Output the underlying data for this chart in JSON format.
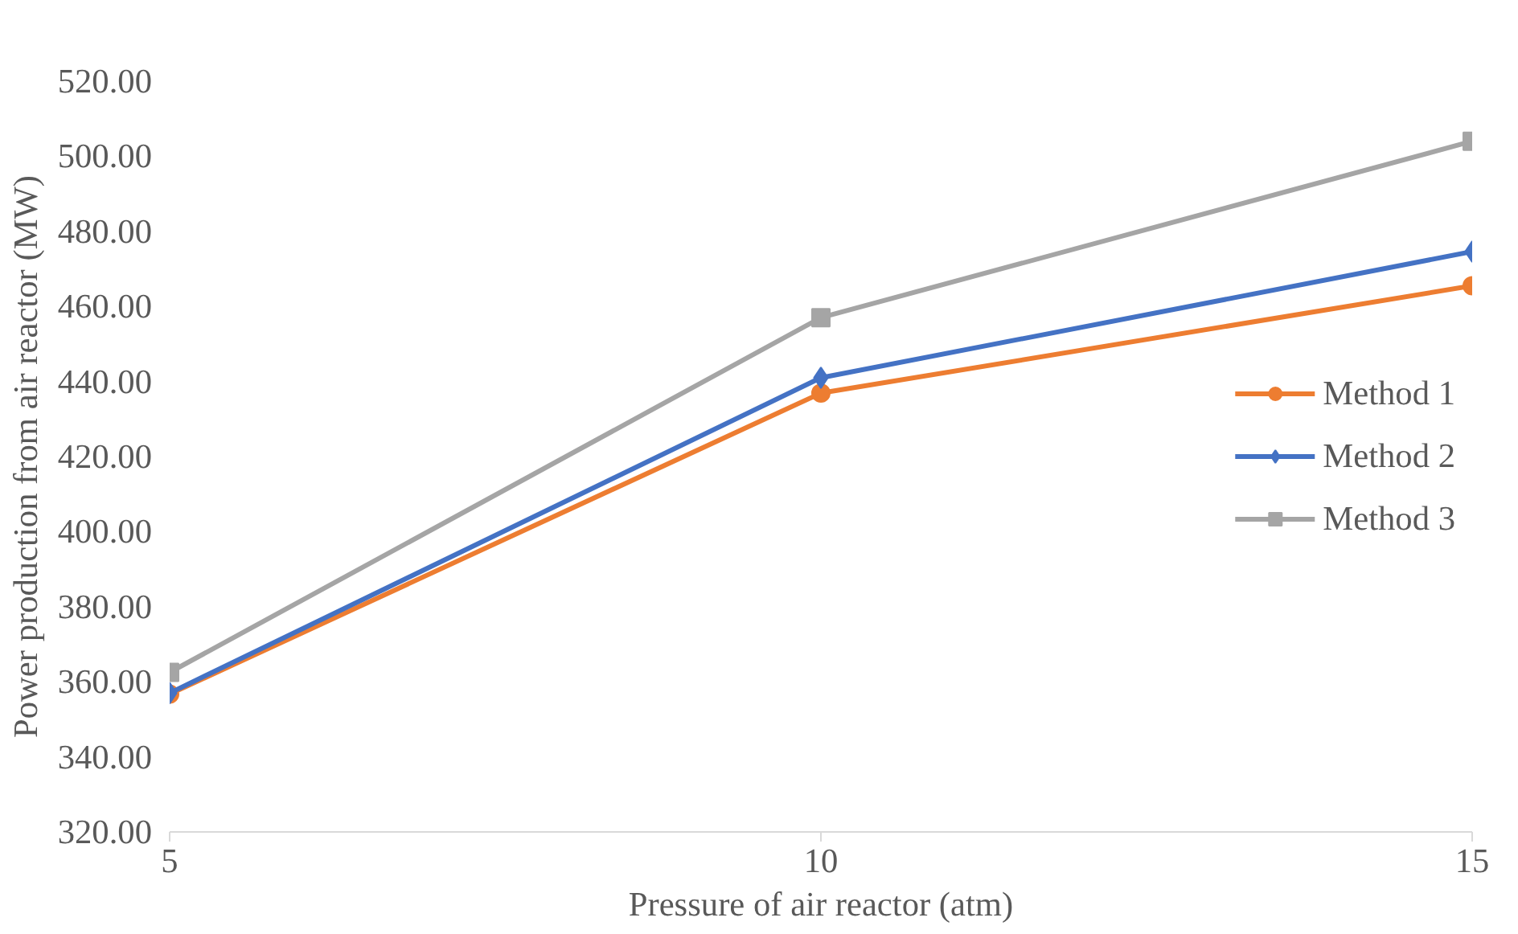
{
  "chart_data": {
    "type": "line",
    "xlabel": "Pressure of air reactor (atm)",
    "ylabel": "Power production from air reactor (MW)",
    "x": [
      5,
      10,
      15
    ],
    "xlim": [
      5,
      15
    ],
    "xticks": [
      5,
      10,
      15
    ],
    "ylim": [
      320,
      520
    ],
    "yticks": [
      {
        "value": 320,
        "label": "320.00"
      },
      {
        "value": 340,
        "label": "340.00"
      },
      {
        "value": 360,
        "label": "360.00"
      },
      {
        "value": 380,
        "label": "380.00"
      },
      {
        "value": 400,
        "label": "400.00"
      },
      {
        "value": 420,
        "label": "420.00"
      },
      {
        "value": 440,
        "label": "440.00"
      },
      {
        "value": 460,
        "label": "460.00"
      },
      {
        "value": 480,
        "label": "480.00"
      },
      {
        "value": 500,
        "label": "500.00"
      },
      {
        "value": 520,
        "label": "520.00"
      }
    ],
    "grid": false,
    "legend": "right",
    "line_style": "solid",
    "series": [
      {
        "name": "Method 1",
        "color": "#ed7d31",
        "marker": "circle",
        "values": [
          356.7,
          436.9,
          465.5
        ]
      },
      {
        "name": "Method 2",
        "color": "#4472c4",
        "marker": "diamond",
        "values": [
          357.0,
          441.0,
          474.6
        ]
      },
      {
        "name": "Method 3",
        "color": "#a5a5a5",
        "marker": "square",
        "values": [
          362.5,
          457.0,
          504.0
        ]
      }
    ]
  }
}
